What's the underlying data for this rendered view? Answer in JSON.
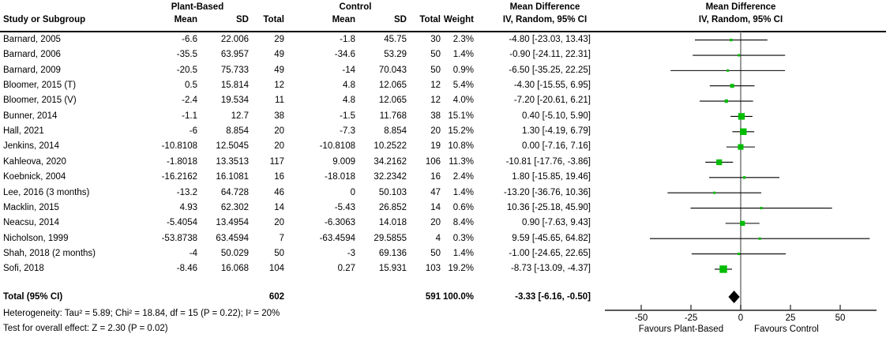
{
  "header": {
    "group_experimental": "Plant-Based",
    "group_control": "Control",
    "study_col": "Study or Subgroup",
    "mean_col": "Mean",
    "sd_col": "SD",
    "total_col": "Total",
    "weight_col": "Weight",
    "md_title": "Mean Difference",
    "md_subtitle": "IV, Random, 95% CI"
  },
  "table": {
    "rows": [
      {
        "study": "Barnard, 2005",
        "mean1": "-6.6",
        "sd1": "22.006",
        "total1": "29",
        "mean2": "-1.8",
        "sd2": "45.75",
        "total2": "30",
        "weight": "2.3%",
        "ci": "-4.80 [-23.03, 13.43]"
      },
      {
        "study": "Barnard, 2006",
        "mean1": "-35.5",
        "sd1": "63.957",
        "total1": "49",
        "mean2": "-34.6",
        "sd2": "53.29",
        "total2": "50",
        "weight": "1.4%",
        "ci": "-0.90 [-24.11, 22.31]"
      },
      {
        "study": "Barnard, 2009",
        "mean1": "-20.5",
        "sd1": "75.733",
        "total1": "49",
        "mean2": "-14",
        "sd2": "70.043",
        "total2": "50",
        "weight": "0.9%",
        "ci": "-6.50 [-35.25, 22.25]"
      },
      {
        "study": "Bloomer, 2015 (T)",
        "mean1": "0.5",
        "sd1": "15.814",
        "total1": "12",
        "mean2": "4.8",
        "sd2": "12.065",
        "total2": "12",
        "weight": "5.4%",
        "ci": "-4.30 [-15.55, 6.95]"
      },
      {
        "study": "Bloomer, 2015 (V)",
        "mean1": "-2.4",
        "sd1": "19.534",
        "total1": "11",
        "mean2": "4.8",
        "sd2": "12.065",
        "total2": "12",
        "weight": "4.0%",
        "ci": "-7.20 [-20.61, 6.21]"
      },
      {
        "study": "Bunner, 2014",
        "mean1": "-1.1",
        "sd1": "12.7",
        "total1": "38",
        "mean2": "-1.5",
        "sd2": "11.768",
        "total2": "38",
        "weight": "15.1%",
        "ci": "0.40 [-5.10, 5.90]"
      },
      {
        "study": "Hall, 2021",
        "mean1": "-6",
        "sd1": "8.854",
        "total1": "20",
        "mean2": "-7.3",
        "sd2": "8.854",
        "total2": "20",
        "weight": "15.2%",
        "ci": "1.30 [-4.19, 6.79]"
      },
      {
        "study": "Jenkins, 2014",
        "mean1": "-10.8108",
        "sd1": "12.5045",
        "total1": "20",
        "mean2": "-10.8108",
        "sd2": "10.2522",
        "total2": "19",
        "weight": "10.8%",
        "ci": "0.00 [-7.16, 7.16]"
      },
      {
        "study": "Kahleova, 2020",
        "mean1": "-1.8018",
        "sd1": "13.3513",
        "total1": "117",
        "mean2": "9.009",
        "sd2": "34.2162",
        "total2": "106",
        "weight": "11.3%",
        "ci": "-10.81 [-17.76, -3.86]"
      },
      {
        "study": "Koebnick, 2004",
        "mean1": "-16.2162",
        "sd1": "16.1081",
        "total1": "16",
        "mean2": "-18.018",
        "sd2": "32.2342",
        "total2": "16",
        "weight": "2.4%",
        "ci": "1.80 [-15.85, 19.46]"
      },
      {
        "study": "Lee, 2016 (3 months)",
        "mean1": "-13.2",
        "sd1": "64.728",
        "total1": "46",
        "mean2": "0",
        "sd2": "50.103",
        "total2": "47",
        "weight": "1.4%",
        "ci": "-13.20 [-36.76, 10.36]"
      },
      {
        "study": "Macklin, 2015",
        "mean1": "4.93",
        "sd1": "62.302",
        "total1": "14",
        "mean2": "-5.43",
        "sd2": "26.852",
        "total2": "14",
        "weight": "0.6%",
        "ci": "10.36 [-25.18, 45.90]"
      },
      {
        "study": "Neacsu, 2014",
        "mean1": "-5.4054",
        "sd1": "13.4954",
        "total1": "20",
        "mean2": "-6.3063",
        "sd2": "14.018",
        "total2": "20",
        "weight": "8.4%",
        "ci": "0.90 [-7.63, 9.43]"
      },
      {
        "study": "Nicholson, 1999",
        "mean1": "-53.8738",
        "sd1": "63.4594",
        "total1": "7",
        "mean2": "-63.4594",
        "sd2": "29.5855",
        "total2": "4",
        "weight": "0.3%",
        "ci": "9.59 [-45.65, 64.82]"
      },
      {
        "study": "Shah, 2018 (2 months)",
        "mean1": "-4",
        "sd1": "50.029",
        "total1": "50",
        "mean2": "-3",
        "sd2": "69.136",
        "total2": "50",
        "weight": "1.4%",
        "ci": "-1.00 [-24.65, 22.65]"
      },
      {
        "study": "Sofi, 2018",
        "mean1": "-8.46",
        "sd1": "16.068",
        "total1": "104",
        "mean2": "0.27",
        "sd2": "15.931",
        "total2": "103",
        "weight": "19.2%",
        "ci": "-8.73 [-13.09, -4.37]"
      }
    ],
    "total_row": {
      "label": "Total (95% CI)",
      "total1": "602",
      "total2": "591",
      "weight": "100.0%",
      "ci": "-3.33 [-6.16, -0.50]"
    }
  },
  "footer": {
    "heterogeneity": "Heterogeneity: Tau² = 5.89; Chi² = 18.84, df = 15 (P = 0.22); I² = 20%",
    "overall_effect": "Test for overall effect: Z = 2.30 (P = 0.02)"
  },
  "colors": {
    "marker_green": "#00bc00",
    "diamond_black": "#000000",
    "ci_line": "#000000",
    "zero_line": "#808080",
    "axis": "#404040",
    "text": "#000000"
  },
  "chart_data": {
    "type": "forest",
    "title": "Mean Difference, IV, Random, 95% CI",
    "effect_measure": "Mean Difference",
    "model": "IV, Random, 95% CI",
    "x_ticks": [
      -50,
      -25,
      0,
      25,
      50
    ],
    "xlim": [
      -68,
      68
    ],
    "zero_line": 0,
    "favours_left": "Favours Plant-Based",
    "favours_right": "Favours Control",
    "studies": [
      {
        "name": "Barnard, 2005",
        "est": -4.8,
        "lo": -23.03,
        "hi": 13.43,
        "weight_pct": 2.3
      },
      {
        "name": "Barnard, 2006",
        "est": -0.9,
        "lo": -24.11,
        "hi": 22.31,
        "weight_pct": 1.4
      },
      {
        "name": "Barnard, 2009",
        "est": -6.5,
        "lo": -35.25,
        "hi": 22.25,
        "weight_pct": 0.9
      },
      {
        "name": "Bloomer, 2015 (T)",
        "est": -4.3,
        "lo": -15.55,
        "hi": 6.95,
        "weight_pct": 5.4
      },
      {
        "name": "Bloomer, 2015 (V)",
        "est": -7.2,
        "lo": -20.61,
        "hi": 6.21,
        "weight_pct": 4.0
      },
      {
        "name": "Bunner, 2014",
        "est": 0.4,
        "lo": -5.1,
        "hi": 5.9,
        "weight_pct": 15.1
      },
      {
        "name": "Hall, 2021",
        "est": 1.3,
        "lo": -4.19,
        "hi": 6.79,
        "weight_pct": 15.2
      },
      {
        "name": "Jenkins, 2014",
        "est": 0.0,
        "lo": -7.16,
        "hi": 7.16,
        "weight_pct": 10.8
      },
      {
        "name": "Kahleova, 2020",
        "est": -10.81,
        "lo": -17.76,
        "hi": -3.86,
        "weight_pct": 11.3
      },
      {
        "name": "Koebnick, 2004",
        "est": 1.8,
        "lo": -15.85,
        "hi": 19.46,
        "weight_pct": 2.4
      },
      {
        "name": "Lee, 2016 (3 months)",
        "est": -13.2,
        "lo": -36.76,
        "hi": 10.36,
        "weight_pct": 1.4
      },
      {
        "name": "Macklin, 2015",
        "est": 10.36,
        "lo": -25.18,
        "hi": 45.9,
        "weight_pct": 0.6
      },
      {
        "name": "Neacsu, 2014",
        "est": 0.9,
        "lo": -7.63,
        "hi": 9.43,
        "weight_pct": 8.4
      },
      {
        "name": "Nicholson, 1999",
        "est": 9.59,
        "lo": -45.65,
        "hi": 64.82,
        "weight_pct": 0.3
      },
      {
        "name": "Shah, 2018 (2 months)",
        "est": -1.0,
        "lo": -24.65,
        "hi": 22.65,
        "weight_pct": 1.4
      },
      {
        "name": "Sofi, 2018",
        "est": -8.73,
        "lo": -13.09,
        "hi": -4.37,
        "weight_pct": 19.2
      }
    ],
    "total": {
      "name": "Total (95% CI)",
      "est": -3.33,
      "lo": -6.16,
      "hi": -0.5,
      "weight_pct": 100.0
    }
  }
}
